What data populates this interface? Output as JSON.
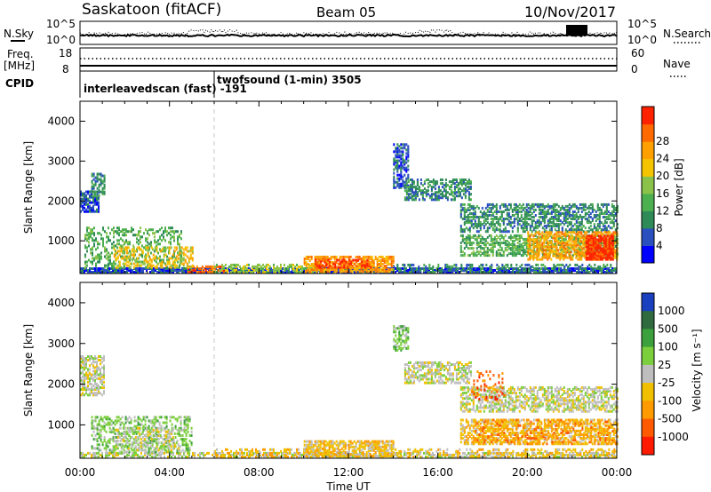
{
  "header": {
    "title": "Saskatoon (fitACF)",
    "beam": "Beam 05",
    "date": "10/Nov/2017"
  },
  "noise_panel": {
    "left_label": "N.Sky",
    "right_label": "N.Search",
    "left_ticks": [
      "10^5",
      "10^0"
    ],
    "right_ticks": [
      "10^5",
      "10^0"
    ]
  },
  "freq_panel": {
    "left_label_1": "Freq.",
    "left_label_2": "[MHz]",
    "right_label": "Nave",
    "left_ticks": [
      "18",
      "8"
    ],
    "right_ticks": [
      "60",
      "0"
    ]
  },
  "cpid": {
    "label": "CPID",
    "entries": [
      {
        "text": "interleavedscan (fast)  -191",
        "start_hour": 0.0
      },
      {
        "text": "twofsound (1-min) 3505",
        "start_hour": 6.0
      }
    ]
  },
  "axes": {
    "xlabel": "Time UT",
    "ylabel": "Slant Range [km]",
    "x_ticks": [
      "00:00",
      "04:00",
      "08:00",
      "12:00",
      "16:00",
      "20:00",
      "00:00"
    ],
    "y_ticks": [
      "1000",
      "2000",
      "3000",
      "4000"
    ]
  },
  "power_colorbar": {
    "label": "Power [dB]",
    "ticks": [
      "4",
      "8",
      "12",
      "16",
      "20",
      "24",
      "28"
    ],
    "colors": [
      "#0000ff",
      "#2a4fbf",
      "#2e8b57",
      "#4caf50",
      "#8bc34a",
      "#f5c400",
      "#ffa000",
      "#ff6a00",
      "#ff2200"
    ]
  },
  "velocity_colorbar": {
    "label": "Velocity [m s⁻¹]",
    "ticks": [
      "1000",
      "500",
      "100",
      "25",
      "-25",
      "-100",
      "-500",
      "-1000"
    ],
    "colors": [
      "#1a3fbf",
      "#2f6b3f",
      "#3ca03c",
      "#7ccf3c",
      "#bebebe",
      "#f0c000",
      "#ff9a00",
      "#ff5a00",
      "#ff1a00"
    ]
  },
  "chart_data": [
    {
      "type": "heatmap",
      "name": "power",
      "xlabel": "Time UT",
      "ylabel": "Slant Range [km]",
      "xlim": [
        0,
        24
      ],
      "ylim": [
        180,
        4500
      ],
      "colorbar_label": "Power [dB]",
      "patches": [
        {
          "t0": 0.0,
          "t1": 24.0,
          "r0": 180,
          "r1": 300,
          "c": 1,
          "d": 0.85
        },
        {
          "t0": 4.8,
          "t1": 6.4,
          "r0": 180,
          "r1": 320,
          "c": 7,
          "d": 0.6
        },
        {
          "t0": 6.0,
          "t1": 11.0,
          "r0": 180,
          "r1": 380,
          "c": 4,
          "d": 0.5
        },
        {
          "t0": 10.0,
          "t1": 14.0,
          "r0": 200,
          "r1": 600,
          "c": 6,
          "d": 0.7
        },
        {
          "t0": 10.5,
          "t1": 13.0,
          "r0": 300,
          "r1": 500,
          "c": 8,
          "d": 0.4
        },
        {
          "t0": 0.0,
          "t1": 0.8,
          "r0": 1700,
          "r1": 2200,
          "c": 1,
          "d": 0.7
        },
        {
          "t0": 0.5,
          "t1": 1.1,
          "r0": 2100,
          "r1": 2650,
          "c": 2,
          "d": 0.6
        },
        {
          "t0": 0.2,
          "t1": 4.5,
          "r0": 300,
          "r1": 1300,
          "c": 3,
          "d": 0.3
        },
        {
          "t0": 1.5,
          "t1": 5.0,
          "r0": 300,
          "r1": 800,
          "c": 5,
          "d": 0.35
        },
        {
          "t0": 14.0,
          "t1": 14.7,
          "r0": 2300,
          "r1": 3400,
          "c": 1,
          "d": 0.6
        },
        {
          "t0": 14.5,
          "t1": 17.5,
          "r0": 2000,
          "r1": 2500,
          "c": 2,
          "d": 0.5
        },
        {
          "t0": 17.0,
          "t1": 24.0,
          "r0": 1200,
          "r1": 1900,
          "c": 2,
          "d": 0.55
        },
        {
          "t0": 17.0,
          "t1": 24.0,
          "r0": 600,
          "r1": 1100,
          "c": 3,
          "d": 0.55
        },
        {
          "t0": 20.0,
          "t1": 24.0,
          "r0": 500,
          "r1": 1200,
          "c": 6,
          "d": 0.6
        },
        {
          "t0": 22.6,
          "t1": 23.8,
          "r0": 500,
          "r1": 1100,
          "c": 8,
          "d": 0.8
        },
        {
          "t0": 14.0,
          "t1": 24.0,
          "r0": 180,
          "r1": 400,
          "c": 2,
          "d": 0.35
        }
      ]
    },
    {
      "type": "heatmap",
      "name": "velocity",
      "xlabel": "Time UT",
      "ylabel": "Slant Range [km]",
      "xlim": [
        0,
        24
      ],
      "ylim": [
        180,
        4500
      ],
      "colorbar_label": "Velocity [m s⁻¹]",
      "patches": [
        {
          "t0": 0.0,
          "t1": 24.0,
          "r0": 180,
          "r1": 300,
          "c": 4,
          "d": 0.6
        },
        {
          "t0": 0.0,
          "t1": 1.1,
          "r0": 1700,
          "r1": 2650,
          "c": 4,
          "d": 0.6
        },
        {
          "t0": 0.5,
          "t1": 5.0,
          "r0": 300,
          "r1": 1200,
          "c": 3,
          "d": 0.35
        },
        {
          "t0": 1.5,
          "t1": 4.5,
          "r0": 300,
          "r1": 900,
          "c": 4,
          "d": 0.35
        },
        {
          "t0": 6.0,
          "t1": 11.0,
          "r0": 180,
          "r1": 380,
          "c": 5,
          "d": 0.45
        },
        {
          "t0": 10.0,
          "t1": 14.0,
          "r0": 200,
          "r1": 600,
          "c": 5,
          "d": 0.7
        },
        {
          "t0": 14.0,
          "t1": 14.7,
          "r0": 2800,
          "r1": 3400,
          "c": 3,
          "d": 0.5
        },
        {
          "t0": 14.5,
          "t1": 17.5,
          "r0": 2000,
          "r1": 2500,
          "c": 4,
          "d": 0.6
        },
        {
          "t0": 17.0,
          "t1": 24.0,
          "r0": 1300,
          "r1": 1900,
          "c": 4,
          "d": 0.55
        },
        {
          "t0": 17.0,
          "t1": 24.0,
          "r0": 500,
          "r1": 1100,
          "c": 5,
          "d": 0.55
        },
        {
          "t0": 17.5,
          "t1": 24.0,
          "r0": 500,
          "r1": 1100,
          "c": 6,
          "d": 0.3
        },
        {
          "t0": 17.5,
          "t1": 19.0,
          "r0": 1600,
          "r1": 2300,
          "c": 7,
          "d": 0.2
        },
        {
          "t0": 14.0,
          "t1": 24.0,
          "r0": 180,
          "r1": 400,
          "c": 5,
          "d": 0.3
        }
      ]
    }
  ]
}
